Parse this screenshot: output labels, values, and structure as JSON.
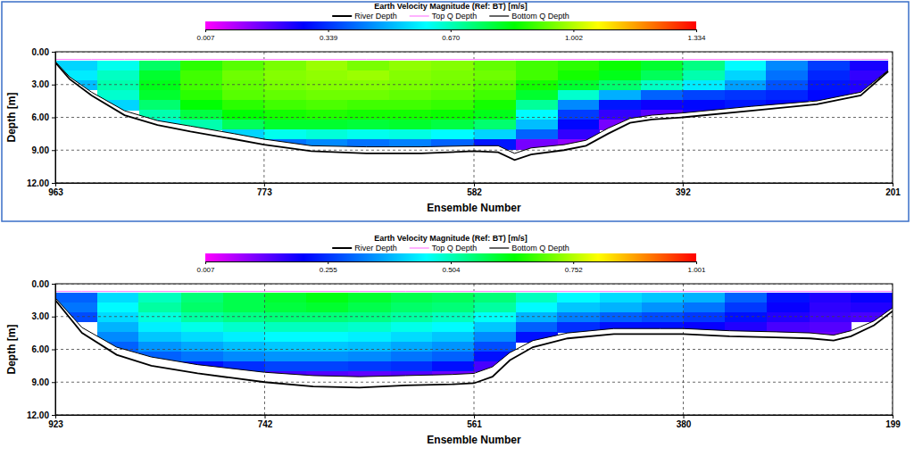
{
  "chart_data": [
    {
      "type": "heatmap",
      "title": "Earth Velocity Magnitude (Ref: BT) [m/s]",
      "xlabel": "Ensemble Number",
      "ylabel": "Depth [m]",
      "xlim": [
        963,
        201
      ],
      "xticks": [
        963,
        773,
        582,
        392,
        201
      ],
      "ylim": [
        0,
        12
      ],
      "yticks": [
        {
          "value": 0,
          "label": "0.00"
        },
        {
          "value": 3,
          "label": "3.00"
        },
        {
          "value": 6,
          "label": "6.00"
        },
        {
          "value": 9,
          "label": "9.00"
        },
        {
          "value": 12,
          "label": "12.00"
        }
      ],
      "grid": true,
      "legend": "top",
      "x": [
        963,
        950,
        930,
        900,
        870,
        840,
        800,
        773,
        730,
        680,
        630,
        582,
        560,
        545,
        530,
        500,
        480,
        460,
        440,
        420,
        392,
        330,
        270,
        230,
        205
      ],
      "series": [
        {
          "name": "River Depth",
          "color": "#000000",
          "values": [
            1.0,
            2.5,
            4.0,
            5.8,
            6.7,
            7.3,
            8.0,
            8.5,
            9.1,
            9.3,
            9.3,
            9.1,
            9.2,
            9.9,
            9.4,
            9.0,
            8.6,
            7.5,
            6.5,
            6.2,
            6.0,
            5.4,
            4.8,
            4.0,
            1.8
          ]
        },
        {
          "name": "Top Q Depth",
          "color": "#ff80ff",
          "values": [
            0.7,
            0.7,
            0.7,
            0.7,
            0.7,
            0.7,
            0.7,
            0.7,
            0.7,
            0.7,
            0.7,
            0.7,
            0.7,
            0.7,
            0.7,
            0.7,
            0.7,
            0.7,
            0.7,
            0.7,
            0.7,
            0.7,
            0.7,
            0.7,
            0.7
          ]
        },
        {
          "name": "Bottom Q Depth",
          "color": "#000000",
          "values": [
            0.9,
            2.3,
            3.7,
            5.4,
            6.3,
            6.8,
            7.5,
            8.0,
            8.6,
            8.7,
            8.7,
            8.6,
            8.6,
            9.3,
            8.8,
            8.5,
            8.1,
            7.0,
            6.1,
            5.8,
            5.6,
            5.0,
            4.5,
            3.7,
            1.7
          ]
        }
      ],
      "cells": {
        "x": [
          963,
          925,
          887,
          849,
          811,
          773,
          735,
          697,
          659,
          621,
          582,
          544,
          506,
          468,
          430,
          392,
          354,
          316,
          278,
          240,
          201
        ],
        "depth": [
          0.8,
          1.7,
          2.6,
          3.5,
          4.4,
          5.3,
          6.2,
          7.1,
          8,
          8.9
        ],
        "values": [
          [
            0.55,
            0.62,
            0.75,
            0.88,
            0.92,
            0.95,
            0.98,
            0.95,
            0.97,
            0.96,
            0.93,
            0.9,
            0.88,
            0.85,
            0.8,
            0.72,
            0.6,
            0.45,
            0.35,
            0.25
          ],
          [
            0.58,
            0.66,
            0.8,
            0.9,
            0.94,
            0.96,
            0.97,
            0.98,
            0.96,
            0.95,
            0.94,
            0.9,
            0.86,
            0.82,
            0.76,
            0.68,
            0.55,
            0.42,
            0.32,
            0.22
          ],
          [
            0.52,
            0.68,
            0.82,
            0.9,
            0.93,
            0.95,
            0.96,
            0.96,
            0.95,
            0.94,
            0.92,
            0.86,
            0.8,
            0.74,
            0.66,
            0.58,
            0.48,
            0.38,
            0.3,
            0.24
          ],
          [
            null,
            0.65,
            0.8,
            0.88,
            0.92,
            0.93,
            0.94,
            0.94,
            0.93,
            0.92,
            0.9,
            0.8,
            0.65,
            0.5,
            0.4,
            0.36,
            0.34,
            0.32,
            0.28,
            0.22
          ],
          [
            null,
            0.55,
            0.74,
            0.84,
            0.88,
            0.9,
            0.91,
            0.9,
            0.9,
            0.89,
            0.86,
            0.7,
            0.45,
            0.3,
            0.26,
            0.28,
            0.3,
            0.28,
            null,
            null
          ],
          [
            null,
            null,
            0.68,
            0.78,
            0.84,
            0.86,
            0.87,
            0.86,
            0.86,
            0.85,
            0.82,
            0.6,
            0.35,
            0.22,
            0.18,
            0.24,
            null,
            null,
            null,
            null
          ],
          [
            null,
            null,
            0.58,
            0.68,
            0.76,
            0.8,
            0.8,
            0.79,
            0.8,
            0.78,
            0.74,
            0.52,
            0.28,
            0.15,
            null,
            null,
            null,
            null,
            null,
            null
          ],
          [
            null,
            null,
            null,
            null,
            0.55,
            0.62,
            0.64,
            0.62,
            0.63,
            0.6,
            0.55,
            0.4,
            0.22,
            null,
            null,
            null,
            null,
            null,
            null,
            null
          ],
          [
            null,
            null,
            null,
            null,
            null,
            0.42,
            0.45,
            0.42,
            0.44,
            0.4,
            0.3,
            0.15,
            0.12,
            null,
            null,
            null,
            null,
            null,
            null,
            null
          ]
        ]
      },
      "colorbar": {
        "range": [
          0.007,
          1.334
        ],
        "ticks": [
          0.007,
          0.339,
          {
            "value": 0.67,
            "label": "0.670"
          },
          1.002,
          1.334
        ]
      }
    },
    {
      "type": "heatmap",
      "title": "Earth Velocity Magnitude (Ref: BT) [m/s]",
      "xlabel": "Ensemble Number",
      "ylabel": "Depth [m]",
      "xlim": [
        923,
        199
      ],
      "xticks": [
        923,
        742,
        561,
        380,
        199
      ],
      "ylim": [
        0,
        12
      ],
      "yticks": [
        {
          "value": 0,
          "label": "0.00"
        },
        {
          "value": 3,
          "label": "3.00"
        },
        {
          "value": 6,
          "label": "6.00"
        },
        {
          "value": 9,
          "label": "9.00"
        },
        {
          "value": 12,
          "label": "12.00"
        }
      ],
      "grid": true,
      "legend": "top",
      "x": [
        923,
        900,
        870,
        840,
        800,
        742,
        700,
        660,
        620,
        580,
        561,
        545,
        530,
        510,
        480,
        440,
        400,
        380,
        340,
        300,
        270,
        250,
        235,
        215,
        199
      ],
      "series": [
        {
          "name": "River Depth",
          "color": "#000000",
          "values": [
            1.5,
            4.5,
            6.5,
            7.5,
            8.2,
            9.0,
            9.4,
            9.5,
            9.3,
            9.2,
            9.1,
            8.5,
            7.0,
            5.8,
            5.0,
            4.6,
            4.6,
            4.6,
            4.8,
            4.9,
            5.0,
            5.2,
            4.8,
            3.8,
            2.5
          ]
        },
        {
          "name": "Top Q Depth",
          "color": "#ff80ff",
          "values": [
            0.7,
            0.7,
            0.7,
            0.7,
            0.7,
            0.7,
            0.7,
            0.7,
            0.7,
            0.7,
            0.7,
            0.7,
            0.7,
            0.7,
            0.7,
            0.7,
            0.7,
            0.7,
            0.7,
            0.7,
            0.7,
            0.7,
            0.7,
            0.7,
            0.7
          ]
        },
        {
          "name": "Bottom Q Depth",
          "color": "#000000",
          "values": [
            1.3,
            4.0,
            5.8,
            6.7,
            7.4,
            8.1,
            8.4,
            8.5,
            8.4,
            8.3,
            8.2,
            7.6,
            6.3,
            5.2,
            4.5,
            4.1,
            4.1,
            4.1,
            4.3,
            4.4,
            4.5,
            4.7,
            4.3,
            3.4,
            2.2
          ]
        }
      ],
      "cells": {
        "x": [
          923,
          887,
          851,
          814,
          778,
          742,
          706,
          670,
          633,
          597,
          561,
          525,
          489,
          452,
          416,
          380,
          344,
          308,
          271,
          235,
          199
        ],
        "depth": [
          0.8,
          1.7,
          2.6,
          3.5,
          4.4,
          5.3,
          6.2,
          7.1,
          8,
          8.9
        ],
        "values": [
          [
            0.3,
            0.42,
            0.5,
            0.55,
            0.58,
            0.6,
            0.62,
            0.6,
            0.58,
            0.57,
            0.55,
            0.5,
            0.45,
            0.42,
            0.4,
            0.38,
            0.3,
            0.22,
            0.18,
            0.2
          ],
          [
            0.32,
            0.45,
            0.52,
            0.56,
            0.58,
            0.59,
            0.6,
            0.58,
            0.56,
            0.55,
            0.52,
            0.45,
            0.4,
            0.38,
            0.35,
            0.32,
            0.26,
            0.2,
            0.17,
            0.18
          ],
          [
            0.28,
            0.42,
            0.48,
            0.52,
            0.54,
            0.55,
            0.55,
            0.54,
            0.52,
            0.5,
            0.46,
            0.38,
            0.33,
            0.3,
            0.28,
            0.26,
            0.22,
            0.18,
            0.16,
            0.15
          ],
          [
            null,
            0.38,
            0.44,
            0.47,
            0.49,
            0.5,
            0.5,
            0.49,
            0.47,
            0.45,
            0.4,
            0.3,
            0.25,
            0.22,
            0.22,
            0.2,
            0.18,
            0.15,
            0.14,
            null
          ],
          [
            null,
            0.34,
            0.4,
            0.42,
            0.44,
            0.45,
            0.45,
            0.44,
            0.42,
            0.4,
            0.34,
            0.22,
            null,
            null,
            null,
            null,
            null,
            null,
            0.12,
            null
          ],
          [
            null,
            0.3,
            0.35,
            0.37,
            0.39,
            0.4,
            0.4,
            0.39,
            0.37,
            0.35,
            0.28,
            null,
            null,
            null,
            null,
            null,
            null,
            null,
            null,
            null
          ],
          [
            null,
            null,
            0.3,
            0.32,
            0.34,
            0.35,
            0.35,
            0.34,
            0.32,
            0.3,
            0.22,
            null,
            null,
            null,
            null,
            null,
            null,
            null,
            null,
            null
          ],
          [
            null,
            null,
            null,
            0.22,
            0.25,
            0.27,
            0.27,
            0.26,
            0.25,
            0.22,
            0.15,
            null,
            null,
            null,
            null,
            null,
            null,
            null,
            null,
            null
          ],
          [
            null,
            null,
            null,
            null,
            null,
            0.15,
            0.14,
            0.13,
            0.14,
            0.12,
            null,
            null,
            null,
            null,
            null,
            null,
            null,
            null,
            null,
            null
          ]
        ]
      },
      "colorbar": {
        "range": [
          0.007,
          1.001
        ],
        "ticks": [
          0.007,
          0.255,
          0.504,
          0.752,
          1.001
        ]
      }
    }
  ]
}
